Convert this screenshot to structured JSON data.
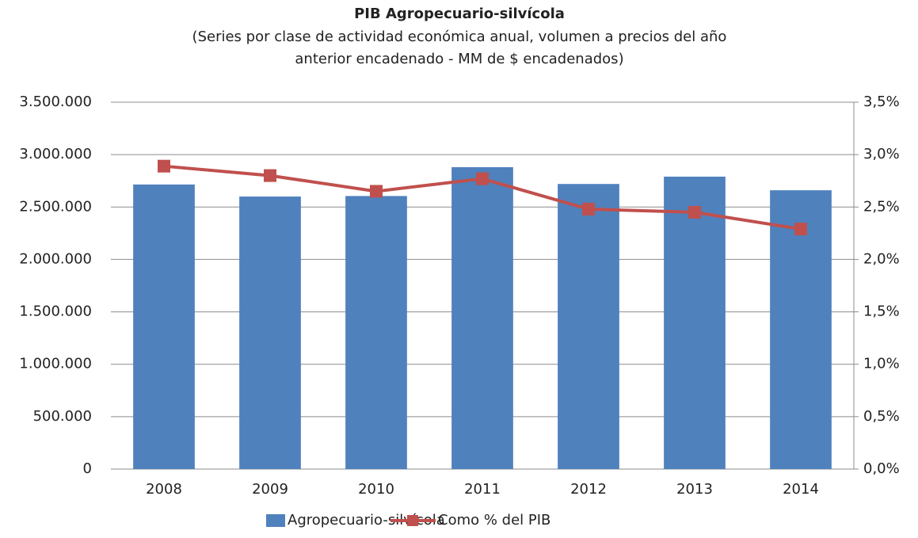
{
  "chart_data": {
    "type": "bar",
    "title": "PIB Agropecuario-silvícola",
    "subtitle": [
      "(Series por clase de actividad económica anual, volumen a precios del año",
      "anterior encadenado - MM de $ encadenados)"
    ],
    "categories": [
      "2008",
      "2009",
      "2010",
      "2011",
      "2012",
      "2013",
      "2014"
    ],
    "series": [
      {
        "name": "Agropecuario-silvícola",
        "type": "bar",
        "color": "#4f81bd",
        "values": [
          2715000,
          2600000,
          2605000,
          2880000,
          2720000,
          2790000,
          2660000
        ]
      },
      {
        "name": "Como % del PIB",
        "type": "line",
        "axis": "y2",
        "color": "#c0504d",
        "values": [
          2.89,
          2.8,
          2.65,
          2.77,
          2.48,
          2.45,
          2.29
        ]
      }
    ],
    "ylim": [
      0,
      3500000
    ],
    "yticks": [
      0,
      {
        "value": 500000,
        "label": "500.000"
      },
      {
        "value": 1000000,
        "label": "1.000.000"
      },
      {
        "value": 1500000,
        "label": "1.500.000"
      },
      {
        "value": 2000000,
        "label": "2.000.000"
      },
      {
        "value": 2500000,
        "label": "2.500.000"
      },
      {
        "value": 3000000,
        "label": "3.000.000"
      },
      {
        "value": 3500000,
        "label": "3.500.000"
      }
    ],
    "y2lim": [
      0,
      3.5
    ],
    "y2ticks": [
      {
        "value": 0,
        "label": "0,0%"
      },
      {
        "value": 0.5,
        "label": "0,5%"
      },
      {
        "value": 1,
        "label": "1,0%"
      },
      {
        "value": 1.5,
        "label": "1,5%"
      },
      {
        "value": 2,
        "label": "2,0%"
      },
      {
        "value": 2.5,
        "label": "2,5%"
      },
      {
        "value": 3,
        "label": "3,0%"
      },
      {
        "value": 3.5,
        "label": "3,5%"
      }
    ],
    "grid": true,
    "legend": "bottom"
  }
}
